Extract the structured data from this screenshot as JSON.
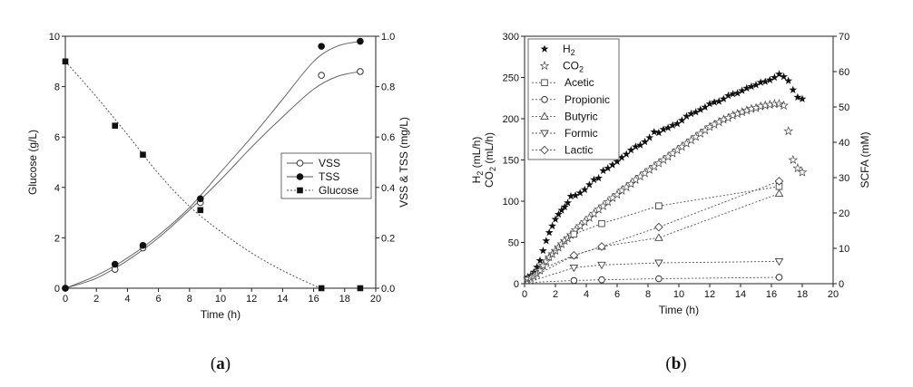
{
  "panels": [
    {
      "open": "(",
      "letter": "a",
      "close": ")"
    },
    {
      "open": "(",
      "letter": "b",
      "close": ")"
    }
  ],
  "chart_data": [
    {
      "type": "line",
      "xlabel": "Time (h)",
      "ylabel": "Glucose (g/L)",
      "y2label": "VSS & TSS (mg/L)",
      "xlim": [
        0,
        20
      ],
      "ylim": [
        0,
        10
      ],
      "y2lim": [
        0,
        1.0
      ],
      "xticks": [
        "0",
        "2",
        "4",
        "6",
        "8",
        "10",
        "12",
        "14",
        "16",
        "18",
        "20"
      ],
      "yticks": [
        "0",
        "2",
        "4",
        "6",
        "8",
        "10"
      ],
      "y2ticks": [
        "0.0",
        "0.2",
        "0.4",
        "0.6",
        "0.8",
        "1.0"
      ],
      "legend_position": "center-right",
      "series": [
        {
          "name": "VSS",
          "axis": "right",
          "marker": "open-circle",
          "line": "solid",
          "points": [
            [
              0,
              0
            ],
            [
              3.2,
              0.075
            ],
            [
              5.0,
              0.16
            ],
            [
              8.7,
              0.34
            ],
            [
              16.5,
              0.845
            ],
            [
              19.0,
              0.86
            ]
          ],
          "fit": [
            [
              0,
              0
            ],
            [
              2,
              0.04
            ],
            [
              4,
              0.11
            ],
            [
              6,
              0.2
            ],
            [
              8,
              0.31
            ],
            [
              10,
              0.43
            ],
            [
              12,
              0.56
            ],
            [
              14,
              0.68
            ],
            [
              16,
              0.79
            ],
            [
              17.5,
              0.84
            ],
            [
              19,
              0.86
            ]
          ]
        },
        {
          "name": "TSS",
          "axis": "right",
          "marker": "filled-circle",
          "line": "solid",
          "points": [
            [
              0,
              0
            ],
            [
              3.2,
              0.095
            ],
            [
              5.0,
              0.17
            ],
            [
              8.7,
              0.355
            ],
            [
              16.5,
              0.96
            ],
            [
              19.0,
              0.98
            ]
          ],
          "fit": [
            [
              0,
              0
            ],
            [
              2,
              0.05
            ],
            [
              4,
              0.12
            ],
            [
              6,
              0.21
            ],
            [
              8,
              0.32
            ],
            [
              10,
              0.46
            ],
            [
              12,
              0.6
            ],
            [
              14,
              0.75
            ],
            [
              16,
              0.9
            ],
            [
              17.5,
              0.96
            ],
            [
              19,
              0.98
            ]
          ]
        },
        {
          "name": "Glucose",
          "axis": "left",
          "marker": "filled-square",
          "line": "dotted",
          "points": [
            [
              0,
              9.0
            ],
            [
              3.2,
              6.45
            ],
            [
              5.0,
              5.3
            ],
            [
              8.7,
              3.1
            ],
            [
              16.5,
              0.0
            ],
            [
              19.0,
              0.0
            ]
          ],
          "fit": [
            [
              0,
              9.0
            ],
            [
              2,
              7.6
            ],
            [
              4,
              6.1
            ],
            [
              6,
              4.55
            ],
            [
              8,
              3.25
            ],
            [
              10,
              2.25
            ],
            [
              12,
              1.4
            ],
            [
              14,
              0.7
            ],
            [
              16,
              0.12
            ],
            [
              16.5,
              0.0
            ]
          ]
        }
      ]
    },
    {
      "type": "scatter",
      "xlabel": "Time (h)",
      "ylabel_lines": [
        "H",
        "2",
        " (mL/h)",
        "CO",
        "2",
        " (mL/h)"
      ],
      "y2label": "SCFA (mM)",
      "xlim": [
        0,
        20
      ],
      "ylim": [
        0,
        300
      ],
      "y2lim": [
        0,
        70
      ],
      "xticks": [
        "0",
        "2",
        "4",
        "6",
        "8",
        "10",
        "12",
        "14",
        "16",
        "18",
        "20"
      ],
      "yticks": [
        "0",
        "50",
        "100",
        "150",
        "200",
        "250",
        "300"
      ],
      "y2ticks": [
        "0",
        "10",
        "20",
        "30",
        "40",
        "50",
        "60",
        "70"
      ],
      "legend_position": "top-left",
      "series": [
        {
          "name": "H",
          "sub": "2",
          "axis": "left",
          "marker": "filled-star",
          "x": [
            0.2,
            0.4,
            0.6,
            0.8,
            1.0,
            1.2,
            1.4,
            1.6,
            1.8,
            2.0,
            2.2,
            2.4,
            2.6,
            2.8,
            3.0,
            3.3,
            3.6,
            3.9,
            4.2,
            4.5,
            4.8,
            5.1,
            5.4,
            5.7,
            6.0,
            6.3,
            6.6,
            6.9,
            7.2,
            7.5,
            7.8,
            8.1,
            8.4,
            8.7,
            9.0,
            9.3,
            9.6,
            9.9,
            10.2,
            10.5,
            10.8,
            11.1,
            11.4,
            11.7,
            12.0,
            12.3,
            12.6,
            12.9,
            13.2,
            13.5,
            13.8,
            14.1,
            14.4,
            14.7,
            15.0,
            15.3,
            15.6,
            15.9,
            16.2,
            16.5,
            16.8,
            17.1,
            17.4,
            17.7,
            18.0
          ],
          "y": [
            8,
            10,
            14,
            20,
            28,
            40,
            52,
            62,
            70,
            78,
            84,
            89,
            93,
            98,
            106,
            107,
            110,
            114,
            120,
            126,
            128,
            137,
            140,
            144,
            148,
            153,
            157,
            162,
            166,
            168,
            172,
            177,
            184,
            183,
            187,
            189,
            192,
            194,
            198,
            203,
            206,
            208,
            211,
            214,
            218,
            220,
            221,
            224,
            228,
            230,
            231,
            234,
            237,
            239,
            241,
            244,
            245,
            247,
            250,
            254,
            251,
            246,
            235,
            226,
            224
          ]
        },
        {
          "name": "CO",
          "sub": "2",
          "axis": "left",
          "marker": "open-star",
          "x": [
            0.2,
            0.4,
            0.6,
            0.8,
            1.0,
            1.2,
            1.4,
            1.6,
            1.8,
            2.0,
            2.2,
            2.4,
            2.6,
            2.8,
            3.0,
            3.3,
            3.6,
            3.9,
            4.2,
            4.5,
            4.8,
            5.1,
            5.4,
            5.7,
            6.0,
            6.3,
            6.6,
            6.9,
            7.2,
            7.5,
            7.8,
            8.1,
            8.4,
            8.7,
            9.0,
            9.3,
            9.6,
            9.9,
            10.2,
            10.5,
            10.8,
            11.1,
            11.4,
            11.7,
            12.0,
            12.3,
            12.6,
            12.9,
            13.2,
            13.5,
            13.8,
            14.1,
            14.4,
            14.7,
            15.0,
            15.3,
            15.6,
            15.9,
            16.2,
            16.5,
            16.8,
            17.1,
            17.4,
            17.7,
            18.0
          ],
          "y": [
            6,
            7,
            9,
            12,
            16,
            22,
            27,
            32,
            36,
            40,
            44,
            48,
            52,
            55,
            59,
            65,
            70,
            75,
            80,
            85,
            90,
            94,
            99,
            104,
            108,
            113,
            117,
            121,
            126,
            130,
            134,
            138,
            142,
            146,
            150,
            154,
            158,
            162,
            166,
            170,
            174,
            178,
            182,
            186,
            190,
            193,
            196,
            199,
            201,
            204,
            206,
            208,
            210,
            212,
            213,
            215,
            216,
            217,
            218,
            218,
            216,
            185,
            150,
            140,
            135
          ]
        },
        {
          "name": "Acetic",
          "axis": "right",
          "marker": "open-square",
          "line": "dotted",
          "x": [
            0,
            1.0,
            3.2,
            5.0,
            8.7,
            16.5
          ],
          "y": [
            0,
            6,
            14,
            17,
            22,
            27.5
          ]
        },
        {
          "name": "Propionic",
          "axis": "right",
          "marker": "open-circle",
          "line": "dotted",
          "x": [
            0,
            1.0,
            3.2,
            5.0,
            8.7,
            16.5
          ],
          "y": [
            0,
            0.5,
            0.9,
            1.1,
            1.4,
            1.8
          ]
        },
        {
          "name": "Butyric",
          "axis": "right",
          "marker": "open-triangle-up",
          "line": "dotted",
          "x": [
            0,
            1.0,
            3.2,
            5.0,
            8.7,
            16.5
          ],
          "y": [
            0,
            3,
            8,
            10.5,
            13,
            25.5
          ]
        },
        {
          "name": "Formic",
          "axis": "right",
          "marker": "open-triangle-down",
          "line": "dotted",
          "x": [
            0,
            1.0,
            3.2,
            5.0,
            8.7,
            16.5
          ],
          "y": [
            0,
            1.5,
            4.5,
            5.3,
            5.9,
            6.3
          ]
        },
        {
          "name": "Lactic",
          "axis": "right",
          "marker": "open-diamond",
          "line": "dotted",
          "x": [
            0,
            1.0,
            3.2,
            5.0,
            8.7,
            16.5
          ],
          "y": [
            0,
            4,
            8,
            10.5,
            16,
            29
          ]
        }
      ]
    }
  ]
}
